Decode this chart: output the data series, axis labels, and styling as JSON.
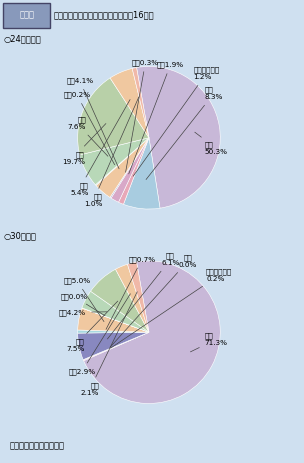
{
  "bg_color": "#cfe0f0",
  "title_box_text": "第４図",
  "title_box_bg": "#7090b0",
  "title_main": "損傷主部位別死者数の構成率（平成16年）",
  "chart1_label": "○24時間死者",
  "chart2_label": "○30日死者",
  "note": "注　警察庁資料による。",
  "chart1_slices": [
    {
      "name": "頭部",
      "pct": "50.3%",
      "value": 50.3,
      "color": "#c8b8d8"
    },
    {
      "name": "全損",
      "pct": "8.3%",
      "value": 8.3,
      "color": "#a8cce0"
    },
    {
      "name": "窒息・溺死等",
      "pct": "1.2%",
      "value": 1.2,
      "color": "#e8a8b8"
    },
    {
      "name": "脚部",
      "pct": "1.9%",
      "value": 1.9,
      "color": "#d8a8c8"
    },
    {
      "name": "腕部",
      "pct": "0.3%",
      "value": 0.3,
      "color": "#b8b8d8"
    },
    {
      "name": "腰部",
      "pct": "4.1%",
      "value": 4.1,
      "color": "#f0c8a0"
    },
    {
      "name": "背部",
      "pct": "0.2%",
      "value": 0.2,
      "color": "#c8d8b8"
    },
    {
      "name": "腹部",
      "pct": "7.6%",
      "value": 7.6,
      "color": "#b8d8b8"
    },
    {
      "name": "胸部",
      "pct": "19.7%",
      "value": 19.7,
      "color": "#b8d0a8"
    },
    {
      "name": "頸部",
      "pct": "5.4%",
      "value": 5.4,
      "color": "#f0c8a0"
    },
    {
      "name": "顔部",
      "pct": "1.0%",
      "value": 1.0,
      "color": "#f0b8a8"
    }
  ],
  "chart2_slices": [
    {
      "name": "頭部",
      "pct": "71.3%",
      "value": 71.3,
      "color": "#c8b8d8"
    },
    {
      "name": "窒息・溺死等",
      "pct": "0.2%",
      "value": 0.2,
      "color": "#e8a8b8"
    },
    {
      "name": "全損",
      "pct": "0.0%",
      "value": 0.05,
      "color": "#a8cce0"
    },
    {
      "name": "胴部",
      "pct": "6.1%",
      "value": 6.1,
      "color": "#8888c0"
    },
    {
      "name": "腕部",
      "pct": "0.7%",
      "value": 0.7,
      "color": "#a8d8e0"
    },
    {
      "name": "腰部",
      "pct": "5.0%",
      "value": 5.0,
      "color": "#f0c8a0"
    },
    {
      "name": "背部",
      "pct": "0.0%",
      "value": 0.05,
      "color": "#c8d8b8"
    },
    {
      "name": "腹部",
      "pct": "4.2%",
      "value": 4.2,
      "color": "#b8d8b8"
    },
    {
      "name": "胸部",
      "pct": "7.5%",
      "value": 7.5,
      "color": "#b8d0a8"
    },
    {
      "name": "頸部",
      "pct": "2.9%",
      "value": 2.9,
      "color": "#f0c8a0"
    },
    {
      "name": "顔部",
      "pct": "2.1%",
      "value": 2.1,
      "color": "#f0b8a8"
    }
  ]
}
